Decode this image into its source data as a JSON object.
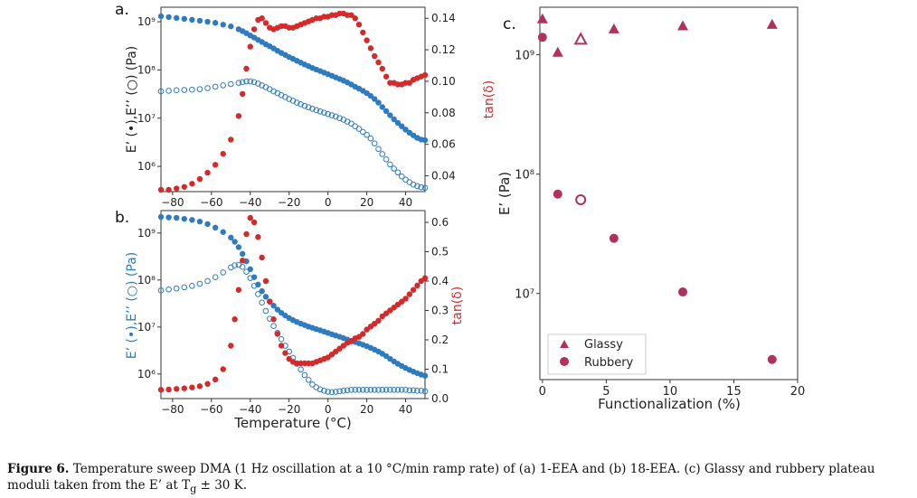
{
  "caption": {
    "label": "Figure 6.",
    "text_before_sub": "Temperature sweep DMA (1 Hz oscillation at a 10 °C/min ramp rate) of (a) 1-EEA and (b) 18-EEA. (c) Glassy and rubbery plateau moduli taken from the E’ at T",
    "sub": "g",
    "text_after_sub": " ± 30 K."
  },
  "colors": {
    "storage": "#2e7bbf",
    "tan": "#d42a2a",
    "panel_c": "#b0305f"
  },
  "chart_data": [
    {
      "panel": "a.",
      "type": "scatter",
      "x": [
        -86,
        -82,
        -78,
        -74,
        -70,
        -66,
        -62,
        -58,
        -54,
        -50,
        -46,
        -44,
        -42,
        -40,
        -38,
        -36,
        -34,
        -32,
        -30,
        -28,
        -26,
        -24,
        -22,
        -20,
        -18,
        -16,
        -14,
        -12,
        -10,
        -8,
        -6,
        -4,
        -2,
        0,
        2,
        4,
        6,
        8,
        10,
        12,
        14,
        16,
        18,
        20,
        22,
        24,
        26,
        28,
        30,
        32,
        34,
        36,
        38,
        40,
        42,
        44,
        46,
        48,
        50
      ],
      "series": [
        {
          "key": "E_storage",
          "axis": "left",
          "marker": "filled",
          "values": [
            1300000000.0,
            1250000000.0,
            1200000000.0,
            1150000000.0,
            1100000000.0,
            1050000000.0,
            1000000000.0,
            950000000.0,
            870000000.0,
            800000000.0,
            700000000.0,
            640000000.0,
            580000000.0,
            520000000.0,
            470000000.0,
            420000000.0,
            380000000.0,
            340000000.0,
            310000000.0,
            280000000.0,
            250000000.0,
            225000000.0,
            205000000.0,
            185000000.0,
            170000000.0,
            155000000.0,
            142000000.0,
            130000000.0,
            120000000.0,
            110000000.0,
            102000000.0,
            95000000.0,
            88000000.0,
            82000000.0,
            76000000.0,
            70000000.0,
            65000000.0,
            60000000.0,
            55000000.0,
            50000000.0,
            45000000.0,
            41000000.0,
            37000000.0,
            33000000.0,
            29000000.0,
            25000000.0,
            21000000.0,
            17000000.0,
            14000000.0,
            11500000.0,
            9500000.0,
            8000000.0,
            6800000.0,
            5800000.0,
            5000000.0,
            4400000.0,
            3900000.0,
            3600000.0,
            3500000.0
          ]
        },
        {
          "key": "E_loss",
          "axis": "left",
          "marker": "open",
          "values": [
            36000000.0,
            37000000.0,
            38000000.0,
            38500000.0,
            39000000.0,
            40000000.0,
            42000000.0,
            45000000.0,
            48000000.0,
            51000000.0,
            54000000.0,
            56000000.0,
            58000000.0,
            58000000.0,
            56000000.0,
            52000000.0,
            48000000.0,
            44000000.0,
            40000000.0,
            36000000.0,
            33000000.0,
            30000000.0,
            27500000.0,
            25000000.0,
            23000000.0,
            21000000.0,
            19500000.0,
            18000000.0,
            16800000.0,
            15700000.0,
            14700000.0,
            13800000.0,
            13000000.0,
            12200000.0,
            11500000.0,
            10800000.0,
            10000000.0,
            9300000.0,
            8500000.0,
            7700000.0,
            6800000.0,
            6000000.0,
            5200000.0,
            4500000.0,
            3800000.0,
            3000000.0,
            2300000.0,
            1800000.0,
            1400000.0,
            1100000.0,
            900000.0,
            750000.0,
            620000.0,
            530000.0,
            470000.0,
            420000.0,
            390000.0,
            370000.0,
            360000.0
          ]
        },
        {
          "key": "tan_delta",
          "axis": "right",
          "marker": "filled",
          "values": [
            0.03,
            0.031,
            0.032,
            0.033,
            0.035,
            0.038,
            0.042,
            0.047,
            0.054,
            0.063,
            0.078,
            0.092,
            0.108,
            0.122,
            0.133,
            0.139,
            0.14,
            0.137,
            0.134,
            0.133,
            0.134,
            0.135,
            0.135,
            0.134,
            0.134,
            0.135,
            0.136,
            0.137,
            0.138,
            0.139,
            0.14,
            0.14,
            0.141,
            0.141,
            0.142,
            0.142,
            0.143,
            0.143,
            0.142,
            0.142,
            0.14,
            0.136,
            0.131,
            0.126,
            0.121,
            0.116,
            0.112,
            0.108,
            0.103,
            0.099,
            0.099,
            0.098,
            0.098,
            0.099,
            0.099,
            0.101,
            0.102,
            0.103,
            0.104
          ]
        }
      ],
      "y_left": {
        "label": "E’ (•),E’’ (○) (Pa)",
        "scale": "log",
        "lim": [
          300000.0,
          2000000000.0
        ],
        "ticks": [
          1000000.0,
          10000000.0,
          100000000.0,
          1000000000.0
        ],
        "tick_labels": [
          "10⁶",
          "10⁷",
          "10⁸",
          "10⁹"
        ]
      },
      "y_right": {
        "label": "tan(δ)",
        "lim": [
          0.03,
          0.147
        ],
        "ticks": [
          0.04,
          0.06,
          0.08,
          0.1,
          0.12,
          0.14
        ],
        "tick_labels": [
          "0.04",
          "0.06",
          "0.08",
          "0.10",
          "0.12",
          "0.14"
        ]
      },
      "x_axis": {
        "label": "",
        "lim": [
          -86,
          50
        ],
        "ticks": [
          -80,
          -60,
          -40,
          -20,
          0,
          20,
          40
        ],
        "tick_labels": [
          "−80",
          "−60",
          "−40",
          "−20",
          "0",
          "20",
          "40"
        ]
      }
    },
    {
      "panel": "b.",
      "type": "scatter",
      "x": [
        -86,
        -82,
        -78,
        -74,
        -70,
        -66,
        -62,
        -58,
        -54,
        -50,
        -48,
        -46,
        -44,
        -42,
        -40,
        -38,
        -36,
        -34,
        -32,
        -30,
        -28,
        -26,
        -24,
        -22,
        -20,
        -18,
        -16,
        -14,
        -12,
        -10,
        -8,
        -6,
        -4,
        -2,
        0,
        2,
        4,
        6,
        8,
        10,
        12,
        14,
        16,
        18,
        20,
        22,
        24,
        26,
        28,
        30,
        32,
        34,
        36,
        38,
        40,
        42,
        44,
        46,
        48,
        50
      ],
      "series": [
        {
          "key": "E_storage",
          "axis": "left",
          "marker": "filled",
          "values": [
            2200000000.0,
            2150000000.0,
            2100000000.0,
            2000000000.0,
            1900000000.0,
            1750000000.0,
            1550000000.0,
            1300000000.0,
            1050000000.0,
            800000000.0,
            650000000.0,
            500000000.0,
            360000000.0,
            250000000.0,
            170000000.0,
            115000000.0,
            80000000.0,
            58000000.0,
            44000000.0,
            35000000.0,
            28500000.0,
            23500000.0,
            20000000.0,
            17500000.0,
            15500000.0,
            14000000.0,
            12800000.0,
            11800000.0,
            11000000.0,
            10200000.0,
            9600000.0,
            9000000.0,
            8500000.0,
            8000000.0,
            7500000.0,
            7000000.0,
            6600000.0,
            6200000.0,
            5800000.0,
            5400000.0,
            5100000.0,
            4800000.0,
            4500000.0,
            4200000.0,
            3900000.0,
            3600000.0,
            3300000.0,
            3000000.0,
            2700000.0,
            2400000.0,
            2100000.0,
            1850000.0,
            1650000.0,
            1480000.0,
            1340000.0,
            1220000.0,
            1120000.0,
            1040000.0,
            970000.0,
            920000.0
          ]
        },
        {
          "key": "E_loss",
          "axis": "left",
          "marker": "open",
          "values": [
            60000000.0,
            63000000.0,
            66000000.0,
            70000000.0,
            75000000.0,
            83000000.0,
            95000000.0,
            115000000.0,
            145000000.0,
            185000000.0,
            205000000.0,
            210000000.0,
            190000000.0,
            150000000.0,
            110000000.0,
            75000000.0,
            50000000.0,
            33000000.0,
            22000000.0,
            15000000.0,
            10500000.0,
            7500000.0,
            5500000.0,
            4000000.0,
            3000000.0,
            2200000.0,
            1650000.0,
            1250000.0,
            950000.0,
            750000.0,
            600000.0,
            520000.0,
            470000.0,
            440000.0,
            420000.0,
            410000.0,
            420000.0,
            430000.0,
            440000.0,
            450000.0,
            460000.0,
            460000.0,
            460000.0,
            460000.0,
            460000.0,
            460000.0,
            460000.0,
            460000.0,
            460000.0,
            460000.0,
            460000.0,
            460000.0,
            460000.0,
            460000.0,
            460000.0,
            450000.0,
            450000.0,
            440000.0,
            440000.0,
            430000.0
          ]
        },
        {
          "key": "tan_delta",
          "axis": "right",
          "marker": "filled",
          "values": [
            0.03,
            0.031,
            0.033,
            0.035,
            0.038,
            0.042,
            0.05,
            0.065,
            0.1,
            0.18,
            0.27,
            0.37,
            0.47,
            0.56,
            0.615,
            0.6,
            0.55,
            0.48,
            0.4,
            0.33,
            0.27,
            0.22,
            0.18,
            0.155,
            0.135,
            0.125,
            0.12,
            0.12,
            0.12,
            0.12,
            0.12,
            0.125,
            0.13,
            0.135,
            0.14,
            0.15,
            0.16,
            0.17,
            0.18,
            0.19,
            0.195,
            0.205,
            0.21,
            0.22,
            0.235,
            0.245,
            0.255,
            0.265,
            0.28,
            0.29,
            0.3,
            0.31,
            0.32,
            0.33,
            0.34,
            0.355,
            0.37,
            0.385,
            0.4,
            0.41
          ]
        }
      ],
      "y_left": {
        "label": "E’ (•),E’’ (○) (Pa)",
        "scale": "log",
        "lim": [
          300000.0,
          3000000000.0
        ],
        "ticks": [
          1000000.0,
          10000000.0,
          100000000.0,
          1000000000.0
        ],
        "tick_labels": [
          "10⁶",
          "10⁷",
          "10⁸",
          "10⁹"
        ]
      },
      "y_right": {
        "label": "tan(δ)",
        "lim": [
          0.0,
          0.64
        ],
        "ticks": [
          0.0,
          0.1,
          0.2,
          0.3,
          0.4,
          0.5,
          0.6
        ],
        "tick_labels": [
          "0.0",
          "0.1",
          "0.2",
          "0.3",
          "0.4",
          "0.5",
          "0.6"
        ]
      },
      "x_axis": {
        "label": "Temperature (°C)",
        "lim": [
          -86,
          50
        ],
        "ticks": [
          -80,
          -60,
          -40,
          -20,
          0,
          20,
          40
        ],
        "tick_labels": [
          "−80",
          "−60",
          "−40",
          "−20",
          "0",
          "20",
          "40"
        ]
      }
    },
    {
      "panel": "c.",
      "type": "scatter",
      "series": [
        {
          "name": "Glassy",
          "marker": "triangle",
          "x": [
            0,
            1.2,
            5.6,
            11,
            18
          ],
          "values": [
            2000000000.0,
            1050000000.0,
            1650000000.0,
            1750000000.0,
            1800000000.0
          ]
        },
        {
          "name": "Glassy open",
          "marker": "open-triangle",
          "x": [
            3
          ],
          "values": [
            1350000000.0
          ]
        },
        {
          "name": "Rubbery",
          "marker": "circle",
          "x": [
            0,
            1.2,
            5.6,
            11,
            18
          ],
          "values": [
            1400000000.0,
            68000000.0,
            29000000.0,
            10300000.0,
            2800000.0
          ]
        },
        {
          "name": "Rubbery open",
          "marker": "open-circle",
          "x": [
            3
          ],
          "values": [
            61000000.0
          ]
        }
      ],
      "legend": {
        "placement": "lower-left",
        "entries": [
          "Glassy",
          "Rubbery"
        ]
      },
      "y_axis": {
        "label": "E’ (Pa)",
        "scale": "log",
        "lim": [
          1900000.0,
          2500000000.0
        ],
        "ticks": [
          10000000.0,
          100000000.0,
          1000000000.0
        ],
        "tick_labels": [
          "10⁷",
          "10⁸",
          "10⁹"
        ]
      },
      "x_axis": {
        "label": "Functionalization (%)",
        "lim": [
          -0.2,
          20
        ],
        "ticks": [
          0,
          5,
          10,
          15,
          20
        ],
        "tick_labels": [
          "0",
          "5",
          "10",
          "15",
          "20"
        ]
      }
    }
  ]
}
